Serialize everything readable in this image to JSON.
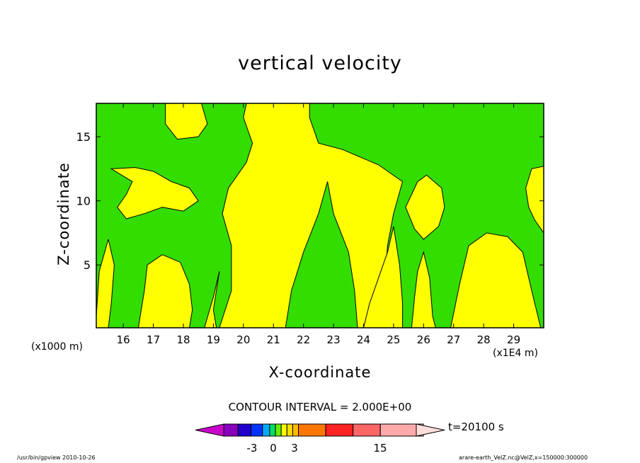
{
  "chart_data": {
    "type": "heatmap",
    "title": "vertical velocity",
    "xlabel": "X-coordinate",
    "ylabel": "Z-coordinate",
    "x_unit_label": "(x1000 m)",
    "x_scale_label": "(x1E4 m)",
    "x_ticks": [
      16,
      17,
      18,
      19,
      20,
      21,
      22,
      23,
      24,
      25,
      26,
      27,
      28,
      29
    ],
    "y_ticks": [
      5,
      10,
      15
    ],
    "xlim": [
      15.1,
      30.0
    ],
    "ylim": [
      0.1,
      17.6
    ],
    "contour_interval_text": "CONTOUR INTERVAL = 2.000E+00",
    "time_label": "t=20100 s",
    "colorbar_ticks": [
      "-3",
      "0",
      "3",
      "15"
    ],
    "colors": {
      "negative": "#33dd00",
      "positive": "#ffff00"
    },
    "colorbar_colors": [
      "#cc00cc",
      "#8800bb",
      "#2200cc",
      "#0033ff",
      "#00aaff",
      "#00dd66",
      "#66ee00",
      "#ffff00",
      "#ffdd00",
      "#ffbb00",
      "#ff7700",
      "#ff2222",
      "#ff6666",
      "#ffaaaa",
      "#ffcccc",
      "#ffdddd"
    ],
    "regions": [
      {
        "sign": "positive",
        "points": [
          [
            19.2,
            0.1
          ],
          [
            19.6,
            3.0
          ],
          [
            19.6,
            6.5
          ],
          [
            19.3,
            9.0
          ],
          [
            19.5,
            11.0
          ],
          [
            20.1,
            13.0
          ],
          [
            20.3,
            14.5
          ],
          [
            20.0,
            16.5
          ],
          [
            20.1,
            17.6
          ],
          [
            22.2,
            17.6
          ],
          [
            22.2,
            16.5
          ],
          [
            22.5,
            14.5
          ],
          [
            23.3,
            14.0
          ],
          [
            24.5,
            12.8
          ],
          [
            25.3,
            11.5
          ],
          [
            25.0,
            9.0
          ],
          [
            24.8,
            6.5
          ],
          [
            24.7,
            3.5
          ],
          [
            24.7,
            0.1
          ],
          [
            23.8,
            0.1
          ],
          [
            23.7,
            3.0
          ],
          [
            23.5,
            6.0
          ],
          [
            23.0,
            9.0
          ],
          [
            22.8,
            11.5
          ],
          [
            22.5,
            9.0
          ],
          [
            22.0,
            6.0
          ],
          [
            21.6,
            3.0
          ],
          [
            21.4,
            0.1
          ]
        ]
      },
      {
        "sign": "positive",
        "points": [
          [
            17.4,
            17.6
          ],
          [
            18.6,
            17.6
          ],
          [
            18.8,
            16.0
          ],
          [
            18.5,
            15.0
          ],
          [
            17.8,
            14.8
          ],
          [
            17.4,
            16.0
          ]
        ]
      },
      {
        "sign": "positive",
        "points": [
          [
            15.6,
            12.5
          ],
          [
            16.4,
            12.6
          ],
          [
            17.0,
            12.3
          ],
          [
            17.6,
            11.5
          ],
          [
            18.2,
            11.0
          ],
          [
            18.5,
            10.0
          ],
          [
            18.0,
            9.2
          ],
          [
            17.3,
            9.5
          ],
          [
            16.7,
            9.0
          ],
          [
            16.1,
            8.6
          ],
          [
            15.8,
            9.5
          ],
          [
            16.1,
            10.5
          ],
          [
            16.3,
            11.5
          ]
        ]
      },
      {
        "sign": "positive",
        "points": [
          [
            16.5,
            0.1
          ],
          [
            16.7,
            3.0
          ],
          [
            16.8,
            5.0
          ],
          [
            17.3,
            5.8
          ],
          [
            17.9,
            5.2
          ],
          [
            18.2,
            3.5
          ],
          [
            18.3,
            1.5
          ],
          [
            18.2,
            0.1
          ]
        ]
      },
      {
        "sign": "positive",
        "points": [
          [
            18.7,
            0.1
          ],
          [
            19.0,
            2.5
          ],
          [
            19.2,
            4.5
          ],
          [
            19.0,
            1.5
          ],
          [
            19.1,
            0.1
          ]
        ]
      },
      {
        "sign": "positive",
        "points": [
          [
            15.1,
            1.0
          ],
          [
            15.2,
            4.5
          ],
          [
            15.5,
            7.0
          ],
          [
            15.7,
            5.0
          ],
          [
            15.6,
            2.0
          ],
          [
            15.5,
            0.1
          ],
          [
            15.1,
            0.1
          ]
        ]
      },
      {
        "sign": "positive",
        "points": [
          [
            24.0,
            0.1
          ],
          [
            24.2,
            2.0
          ],
          [
            24.5,
            4.0
          ],
          [
            24.8,
            6.0
          ],
          [
            25.0,
            8.0
          ],
          [
            25.2,
            5.0
          ],
          [
            25.3,
            2.0
          ],
          [
            25.3,
            0.1
          ]
        ]
      },
      {
        "sign": "positive",
        "points": [
          [
            25.6,
            0.1
          ],
          [
            25.7,
            2.5
          ],
          [
            25.8,
            4.5
          ],
          [
            26.0,
            6.0
          ],
          [
            26.2,
            4.0
          ],
          [
            26.3,
            1.0
          ],
          [
            26.4,
            0.1
          ]
        ]
      },
      {
        "sign": "positive",
        "points": [
          [
            25.4,
            9.5
          ],
          [
            25.8,
            11.5
          ],
          [
            26.1,
            12.0
          ],
          [
            26.6,
            11.0
          ],
          [
            26.7,
            9.5
          ],
          [
            26.5,
            8.0
          ],
          [
            26.0,
            7.0
          ],
          [
            25.7,
            7.8
          ]
        ]
      },
      {
        "sign": "positive",
        "points": [
          [
            26.9,
            0.1
          ],
          [
            27.2,
            3.5
          ],
          [
            27.5,
            6.5
          ],
          [
            28.1,
            7.5
          ],
          [
            28.8,
            7.2
          ],
          [
            29.3,
            6.0
          ],
          [
            29.6,
            3.0
          ],
          [
            29.9,
            0.1
          ]
        ]
      },
      {
        "sign": "positive",
        "points": [
          [
            29.4,
            11.0
          ],
          [
            29.6,
            12.5
          ],
          [
            30.0,
            12.7
          ],
          [
            30.0,
            7.5
          ],
          [
            29.7,
            8.5
          ],
          [
            29.5,
            9.5
          ]
        ]
      }
    ]
  }
}
